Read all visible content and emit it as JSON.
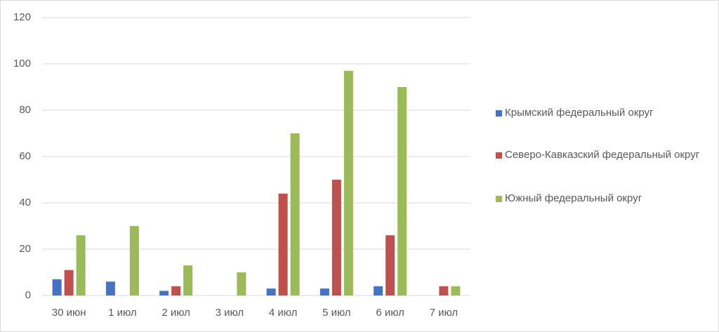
{
  "chart_data": {
    "type": "bar",
    "categories": [
      "30 июн",
      "1 июл",
      "2 июл",
      "3 июл",
      "4 июл",
      "5 июл",
      "6 июл",
      "7 июл"
    ],
    "series": [
      {
        "name": "Крымский федеральный округ",
        "color": "#4472c4",
        "values": [
          7,
          6,
          2,
          0,
          3,
          3,
          4,
          0
        ]
      },
      {
        "name": "Северо-Кавказский федеральный округ",
        "color": "#c0504d",
        "values": [
          11,
          0,
          4,
          0,
          44,
          50,
          26,
          4
        ]
      },
      {
        "name": "Южный федеральный округ",
        "color": "#9bbb59",
        "values": [
          26,
          30,
          13,
          10,
          70,
          97,
          90,
          4
        ]
      }
    ],
    "ylim": [
      0,
      120
    ],
    "yticks": [
      0,
      20,
      40,
      60,
      80,
      100,
      120
    ],
    "grid": true,
    "legend": "right"
  }
}
